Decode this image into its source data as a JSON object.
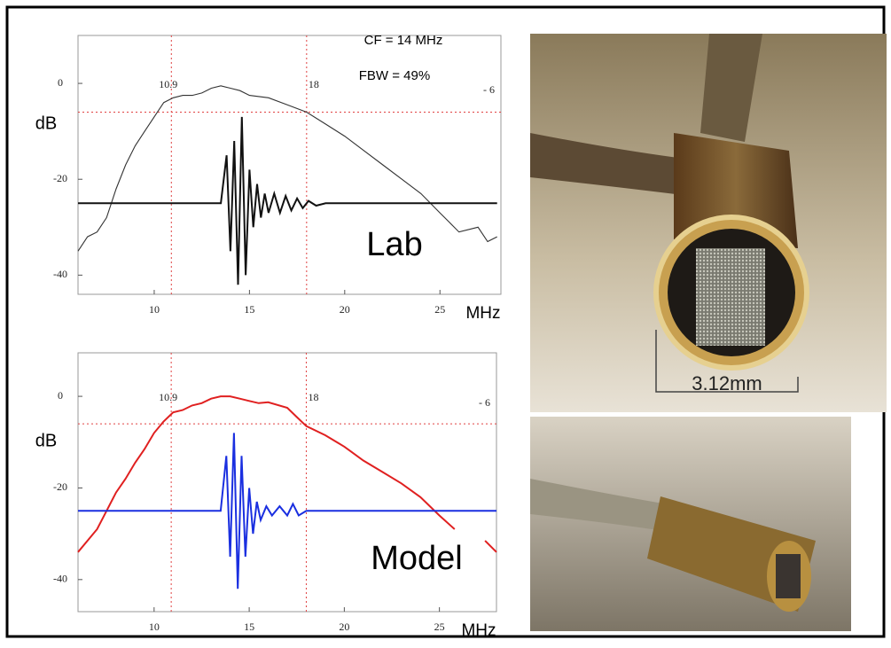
{
  "chart_data": [
    {
      "type": "line",
      "label": "Lab",
      "y_label": "dB",
      "x_label": "MHz",
      "annotations": [
        "CF = 14 MHz",
        "FBW = 49%"
      ],
      "xlim": [
        6,
        28.2
      ],
      "ylim": [
        -44,
        10
      ],
      "xticks": [
        10,
        15,
        20,
        25
      ],
      "yticks": [
        0,
        -20,
        -40
      ],
      "vlines": [
        10.9,
        18
      ],
      "hline": {
        "value": -6,
        "label": "- 6"
      },
      "ref_color": "#e04040",
      "series": [
        {
          "color": "#333333",
          "x": [
            6,
            6.5,
            7,
            7.5,
            8,
            8.5,
            9,
            9.5,
            10,
            10.5,
            11,
            11.5,
            12,
            12.5,
            13,
            13.5,
            14,
            14.5,
            15,
            16,
            17,
            18,
            19,
            20,
            21,
            22,
            23,
            24,
            25,
            25.5,
            26,
            27,
            27.5,
            28
          ],
          "values": [
            -35,
            -32,
            -31,
            -28,
            -22,
            -17,
            -13,
            -10,
            -7,
            -4,
            -3,
            -2.5,
            -2.5,
            -2,
            -1,
            -0.5,
            -1,
            -1.5,
            -2.5,
            -3,
            -4.5,
            -6,
            -8.5,
            -11,
            -14,
            -17,
            -20,
            -23,
            -27,
            -29,
            -31,
            -30,
            -33,
            -32
          ]
        },
        {
          "color": "#111111",
          "x": [
            6,
            13.5,
            13.8,
            14.0,
            14.2,
            14.4,
            14.6,
            14.8,
            15.0,
            15.2,
            15.4,
            15.6,
            15.8,
            16.0,
            16.3,
            16.6,
            16.9,
            17.2,
            17.5,
            17.8,
            18.1,
            18.5,
            19,
            28
          ],
          "values": [
            -25,
            -25,
            -15,
            -35,
            -12,
            -42,
            -7,
            -40,
            -18,
            -30,
            -21,
            -28,
            -23,
            -27,
            -23,
            -27,
            -23.5,
            -26.5,
            -24,
            -26,
            -24.5,
            -25.5,
            -25,
            -25
          ]
        }
      ]
    },
    {
      "type": "line",
      "label": "Model",
      "y_label": "dB",
      "x_label": "MHz",
      "xlim": [
        6,
        28
      ],
      "ylim": [
        -47,
        9.5
      ],
      "xticks": [
        10,
        15,
        20,
        25
      ],
      "yticks": [
        0,
        -20,
        -40
      ],
      "vlines": [
        10.9,
        18
      ],
      "hline": {
        "value": -6,
        "label": "- 6"
      },
      "ref_color": "#e04040",
      "series": [
        {
          "color": "#e02020",
          "x": [
            6,
            7,
            7.5,
            8,
            8.5,
            9,
            9.5,
            10,
            10.5,
            11,
            11.5,
            12,
            12.5,
            13,
            13.5,
            14,
            14.5,
            15,
            15.5,
            16,
            17,
            17.5,
            18,
            19,
            20,
            21,
            22,
            23,
            24,
            25,
            25.8,
            null,
            27.4,
            28
          ],
          "values": [
            -34,
            -29,
            -25,
            -21,
            -18,
            -14.5,
            -11.5,
            -8,
            -5.5,
            -3.5,
            -3,
            -2,
            -1.5,
            -0.5,
            0,
            0,
            -0.5,
            -1,
            -1.5,
            -1.3,
            -2.5,
            -4.5,
            -6.5,
            -8.5,
            -11,
            -14,
            -16.5,
            -19,
            -22,
            -26,
            -29,
            null,
            -31.5,
            -34
          ]
        },
        {
          "color": "#1a2fe0",
          "x": [
            6,
            13.5,
            13.8,
            14.0,
            14.2,
            14.4,
            14.6,
            14.8,
            15.0,
            15.2,
            15.4,
            15.6,
            15.9,
            16.2,
            16.6,
            17,
            17.3,
            17.6,
            18,
            28
          ],
          "values": [
            -25,
            -25,
            -13,
            -35,
            -8,
            -42,
            -13,
            -35,
            -20,
            -30,
            -23,
            -27,
            -24,
            -26,
            -24,
            -26,
            -23.5,
            -26,
            -25,
            -25
          ]
        }
      ]
    }
  ],
  "photo_label": "3.12mm"
}
